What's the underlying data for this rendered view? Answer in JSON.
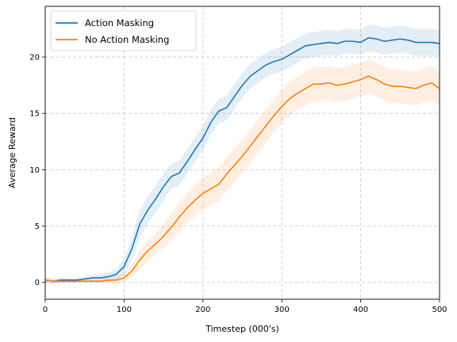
{
  "chart_data": {
    "type": "line",
    "title": "",
    "xlabel": "Timestep (000's)",
    "ylabel": "Average Reward",
    "xlim": [
      0,
      500
    ],
    "ylim": [
      -1.5,
      24.5
    ],
    "xticks": [
      0,
      100,
      200,
      300,
      400,
      500
    ],
    "yticks": [
      0,
      5,
      10,
      15,
      20
    ],
    "grid": true,
    "grid_style": "dashed",
    "legend_position": "top-left",
    "band": "shaded variability band around each line",
    "series": [
      {
        "name": "Action Masking",
        "color": "#1f77b4",
        "x": [
          0,
          10,
          20,
          30,
          40,
          50,
          60,
          70,
          80,
          90,
          100,
          110,
          120,
          130,
          140,
          150,
          160,
          170,
          180,
          190,
          200,
          210,
          220,
          230,
          240,
          250,
          260,
          270,
          280,
          290,
          300,
          310,
          320,
          330,
          340,
          350,
          360,
          370,
          380,
          390,
          400,
          410,
          420,
          430,
          440,
          450,
          460,
          470,
          480,
          490,
          500
        ],
        "values": [
          0.2,
          0.1,
          0.2,
          0.2,
          0.2,
          0.3,
          0.4,
          0.4,
          0.5,
          0.7,
          1.4,
          3.0,
          5.2,
          6.4,
          7.4,
          8.5,
          9.4,
          9.7,
          10.7,
          11.8,
          12.8,
          14.2,
          15.2,
          15.5,
          16.5,
          17.5,
          18.3,
          18.8,
          19.3,
          19.6,
          19.8,
          20.2,
          20.6,
          21.0,
          21.1,
          21.2,
          21.3,
          21.2,
          21.4,
          21.4,
          21.3,
          21.7,
          21.6,
          21.4,
          21.5,
          21.6,
          21.5,
          21.3,
          21.3,
          21.3,
          21.2
        ],
        "band": [
          0.2,
          0.2,
          0.2,
          0.2,
          0.2,
          0.2,
          0.3,
          0.3,
          0.4,
          0.5,
          0.7,
          1.0,
          1.2,
          1.2,
          1.2,
          1.2,
          1.1,
          1.1,
          1.1,
          1.1,
          1.1,
          1.1,
          1.1,
          1.1,
          1.1,
          1.1,
          1.1,
          1.1,
          1.1,
          1.1,
          1.1,
          1.1,
          1.1,
          1.1,
          1.1,
          1.1,
          1.1,
          1.1,
          1.1,
          1.1,
          1.1,
          1.2,
          1.2,
          1.2,
          1.2,
          1.2,
          1.2,
          1.2,
          1.2,
          1.2,
          1.2
        ]
      },
      {
        "name": "No Action Masking",
        "color": "#ff7f0e",
        "x": [
          0,
          10,
          20,
          30,
          40,
          50,
          60,
          70,
          80,
          90,
          100,
          110,
          120,
          130,
          140,
          150,
          160,
          170,
          180,
          190,
          200,
          210,
          220,
          230,
          240,
          250,
          260,
          270,
          280,
          290,
          300,
          310,
          320,
          330,
          340,
          350,
          360,
          370,
          380,
          390,
          400,
          410,
          420,
          430,
          440,
          450,
          460,
          470,
          480,
          490,
          500
        ],
        "values": [
          0.2,
          0.1,
          0.1,
          0.1,
          0.1,
          0.1,
          0.1,
          0.1,
          0.2,
          0.2,
          0.4,
          1.0,
          2.0,
          2.8,
          3.4,
          4.1,
          4.9,
          5.8,
          6.6,
          7.3,
          7.9,
          8.3,
          8.7,
          9.6,
          10.4,
          11.2,
          12.1,
          13.0,
          13.9,
          14.8,
          15.6,
          16.3,
          16.8,
          17.2,
          17.6,
          17.6,
          17.7,
          17.5,
          17.6,
          17.8,
          18.0,
          18.3,
          18.0,
          17.6,
          17.4,
          17.4,
          17.3,
          17.2,
          17.5,
          17.7,
          17.2
        ],
        "band": [
          0.2,
          0.2,
          0.2,
          0.2,
          0.2,
          0.2,
          0.2,
          0.2,
          0.2,
          0.3,
          0.4,
          0.6,
          0.8,
          0.9,
          1.0,
          1.1,
          1.2,
          1.3,
          1.3,
          1.4,
          1.4,
          1.4,
          1.5,
          1.5,
          1.5,
          1.5,
          1.5,
          1.5,
          1.5,
          1.5,
          1.5,
          1.5,
          1.5,
          1.5,
          1.5,
          1.5,
          1.5,
          1.5,
          1.5,
          1.5,
          1.5,
          1.5,
          1.5,
          1.5,
          1.5,
          1.5,
          1.5,
          1.5,
          1.5,
          1.5,
          1.5
        ]
      }
    ]
  }
}
